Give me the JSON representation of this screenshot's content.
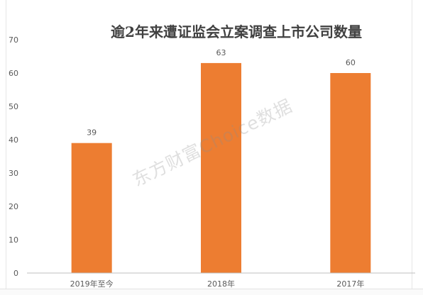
{
  "chart_data": {
    "type": "bar",
    "title": "逾2年来遭证监会立案调查上市公司数量",
    "categories": [
      "2019年至今",
      "2018年",
      "2017年"
    ],
    "values": [
      39,
      63,
      60
    ],
    "data_labels": [
      "39",
      "63",
      "60"
    ],
    "ylim": [
      0,
      70
    ],
    "yticks": [
      0,
      10,
      20,
      30,
      40,
      50,
      60,
      70
    ],
    "grid": false,
    "legend": "none",
    "bar_color": "#ED7D31"
  },
  "watermark": "东方财富Choice数据",
  "colors": {
    "bar": "#ED7D31",
    "axis": "#bfbfbf",
    "text": "#595959",
    "title": "#404040"
  }
}
